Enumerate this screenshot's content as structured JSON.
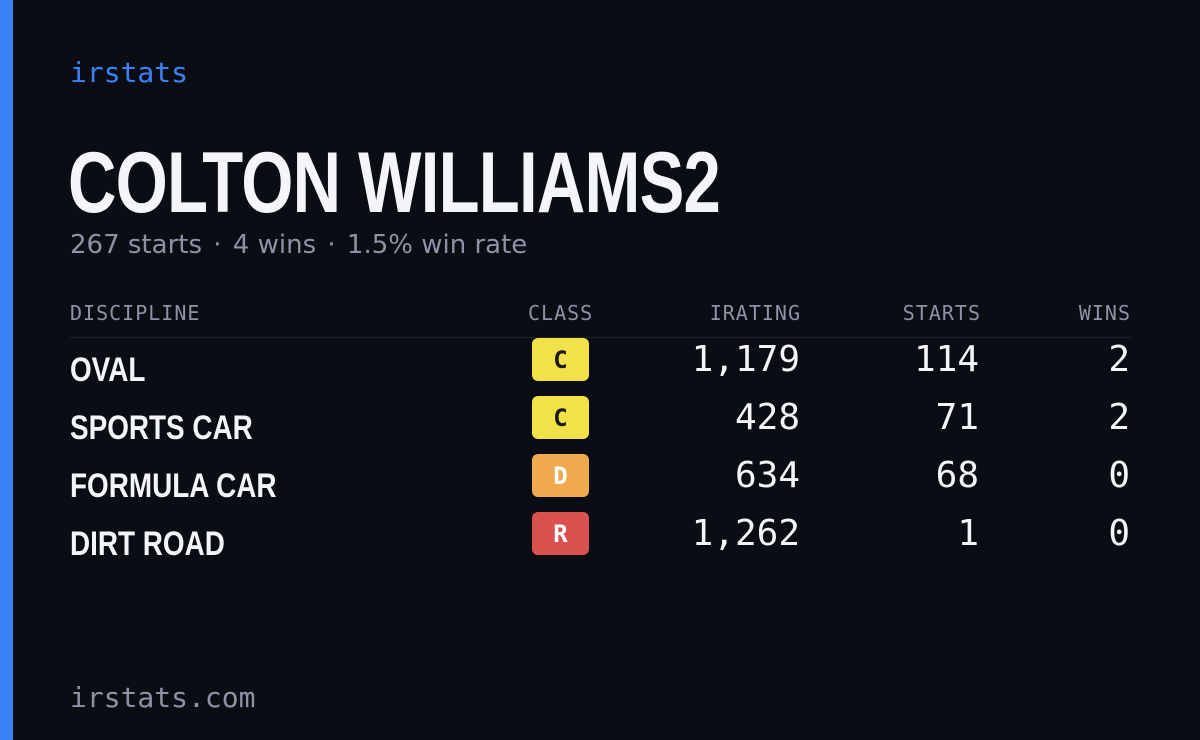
{
  "brand": "irstats",
  "driver": {
    "name": "COLTON WILLIAMS2",
    "starts_text": "267 starts",
    "wins_text": "4 wins",
    "win_rate_text": "1.5% win rate",
    "separator": "·"
  },
  "table": {
    "headers": {
      "discipline": "DISCIPLINE",
      "class": "CLASS",
      "irating": "IRATING",
      "starts": "STARTS",
      "wins": "WINS"
    },
    "rows": [
      {
        "discipline": "OVAL",
        "class": "C",
        "class_color": "#f2e24a",
        "class_text_color": "#1a1a1a",
        "irating": "1,179",
        "starts": "114",
        "wins": "2"
      },
      {
        "discipline": "SPORTS CAR",
        "class": "C",
        "class_color": "#f2e24a",
        "class_text_color": "#1a1a1a",
        "irating": "428",
        "starts": "71",
        "wins": "2"
      },
      {
        "discipline": "FORMULA CAR",
        "class": "D",
        "class_color": "#eeaa4c",
        "class_text_color": "#ffffff",
        "irating": "634",
        "starts": "68",
        "wins": "0"
      },
      {
        "discipline": "DIRT ROAD",
        "class": "R",
        "class_color": "#d9524f",
        "class_text_color": "#ffffff",
        "irating": "1,262",
        "starts": "1",
        "wins": "0"
      }
    ]
  },
  "footer": "irstats.com",
  "colors": {
    "background": "#0b0d14",
    "accent": "#3b82f6",
    "muted": "#8b93a5",
    "text": "#f4f5f8"
  }
}
